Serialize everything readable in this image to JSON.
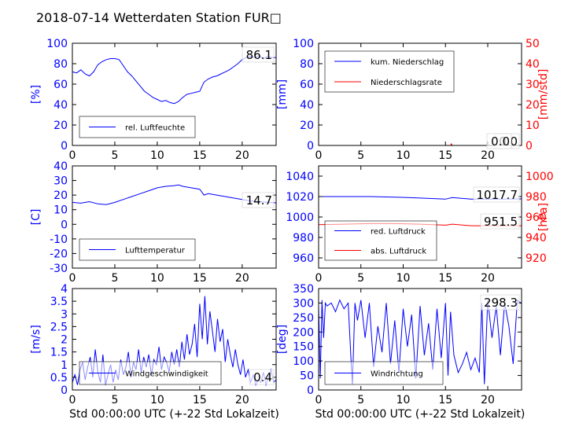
{
  "figure_title": "2018-07-14 Wetterdaten Station FUR□",
  "colors": {
    "blue": "#0000ff",
    "red": "#ff0000",
    "black": "#000000"
  },
  "chart_data": [
    {
      "type": "line",
      "xlim": [
        0,
        24
      ],
      "xticks": [
        0,
        5,
        10,
        15,
        20
      ],
      "ylabel": "[%]",
      "ylim": [
        0,
        100
      ],
      "yticks": [
        0,
        20,
        40,
        60,
        80,
        100
      ],
      "legend": [
        "rel. Luftfeuchte"
      ],
      "legend_loc": "lower-left",
      "annotation": "86.1",
      "series": [
        {
          "name": "rel. Luftfeuchte",
          "color": "#0000ff",
          "x": [
            0,
            0.5,
            1,
            1.5,
            2,
            2.5,
            3,
            3.5,
            4,
            4.5,
            5,
            5.5,
            6,
            6.5,
            7,
            7.5,
            8,
            8.5,
            9,
            9.5,
            10,
            10.5,
            11,
            11.5,
            12,
            12.5,
            13,
            13.5,
            14,
            14.5,
            15,
            15.5,
            16,
            16.5,
            17,
            17.5,
            18,
            18.5,
            19,
            19.5,
            20,
            20.5,
            21,
            21.5,
            22,
            22.5,
            23,
            23.5,
            24
          ],
          "y": [
            72,
            71,
            74,
            70,
            68,
            72,
            79,
            82,
            84,
            85,
            85,
            84,
            78,
            72,
            68,
            63,
            58,
            53,
            50,
            47,
            45,
            43,
            44,
            42,
            41,
            43,
            47,
            50,
            51,
            52,
            53,
            62,
            65,
            67,
            68,
            70,
            72,
            74,
            77,
            80,
            84,
            86,
            87,
            86,
            88,
            85,
            87,
            86,
            86
          ]
        }
      ]
    },
    {
      "type": "line",
      "xlim": [
        0,
        24
      ],
      "xticks": [
        0,
        5,
        10,
        15,
        20
      ],
      "ylabel": "[mm]",
      "ylim": [
        0,
        100
      ],
      "yticks": [
        0,
        20,
        40,
        60,
        80,
        100
      ],
      "ylabel_right": "[mm/std]",
      "ylim_right": [
        0,
        50
      ],
      "yticks_right": [
        0,
        10,
        20,
        30,
        40,
        50
      ],
      "legend": [
        "kum. Niederschlag",
        "Niederschlagsrate"
      ],
      "legend_loc": "upper-left",
      "annotations": [
        "0.0",
        "0.0"
      ],
      "series": [
        {
          "name": "kum. Niederschlag",
          "color": "#0000ff",
          "axis": "left",
          "x": [
            0,
            24
          ],
          "y": [
            0,
            0
          ]
        },
        {
          "name": "Niederschlagsrate",
          "color": "#ff0000",
          "axis": "right",
          "x": [
            0,
            15.6,
            15.7,
            15.8,
            24
          ],
          "y": [
            0,
            0,
            0.8,
            0,
            0
          ]
        }
      ]
    },
    {
      "type": "line",
      "xlim": [
        0,
        24
      ],
      "xticks": [
        0,
        5,
        10,
        15,
        20
      ],
      "ylabel": "[C]",
      "ylim": [
        -30,
        40
      ],
      "yticks": [
        -30,
        -20,
        -10,
        0,
        10,
        20,
        30,
        40
      ],
      "legend": [
        "Lufttemperatur"
      ],
      "legend_loc": "lower-left",
      "annotation": "14.7",
      "series": [
        {
          "name": "Lufttemperatur",
          "color": "#0000ff",
          "x": [
            0,
            1,
            2,
            3,
            4,
            5,
            6,
            7,
            8,
            9,
            10,
            11,
            12,
            12.5,
            13,
            14,
            15,
            15.5,
            16,
            17,
            18,
            19,
            20,
            21,
            22,
            23,
            24
          ],
          "y": [
            15,
            14.5,
            15.5,
            14,
            13.5,
            15,
            17,
            19,
            21,
            23,
            25,
            26,
            26.5,
            27,
            26,
            25,
            24,
            20,
            21,
            20,
            19,
            18,
            17,
            16,
            15.5,
            15,
            14.7
          ]
        }
      ]
    },
    {
      "type": "line",
      "xlim": [
        0,
        24
      ],
      "xticks": [
        0,
        5,
        10,
        15,
        20
      ],
      "ylabel": "",
      "ylim": [
        950,
        1050
      ],
      "yticks": [
        960,
        980,
        1000,
        1020,
        1040
      ],
      "ylabel_right": "[hPa]",
      "ylim_right": [
        910,
        1010
      ],
      "yticks_right": [
        920,
        940,
        960,
        980,
        1000
      ],
      "legend": [
        "red. Luftdruck",
        "abs. Luftdruck"
      ],
      "legend_loc": "lower-left",
      "annotations": [
        "1017.7",
        "951.5"
      ],
      "series": [
        {
          "name": "red. Luftdruck",
          "color": "#0000ff",
          "axis": "left",
          "x": [
            0,
            3,
            6,
            9,
            12,
            15,
            15.8,
            18,
            21,
            24
          ],
          "y": [
            1020,
            1020,
            1020,
            1019.5,
            1018.5,
            1017.5,
            1019,
            1017.5,
            1017.5,
            1017.7
          ]
        },
        {
          "name": "abs. Luftdruck",
          "color": "#ff0000",
          "axis": "right",
          "x": [
            0,
            3,
            6,
            9,
            12,
            15,
            15.8,
            18,
            21,
            24
          ],
          "y": [
            952.5,
            953,
            953.5,
            953.5,
            953,
            952,
            953,
            951.5,
            951.5,
            951.5
          ]
        }
      ]
    },
    {
      "type": "line",
      "xlim": [
        0,
        24
      ],
      "xticks": [
        0,
        5,
        10,
        15,
        20
      ],
      "ylabel": "[m/s]",
      "ylim": [
        0,
        4
      ],
      "yticks": [
        0,
        0.5,
        1,
        1.5,
        2,
        2.5,
        3,
        3.5,
        4
      ],
      "xlabel": "Std 00:00:00 UTC (+-22 Std Lokalzeit)",
      "legend": [
        "Windgeschwindigkeit"
      ],
      "legend_loc": "lower-left",
      "annotation": "0.4",
      "series": [
        {
          "name": "Windgeschwindigkeit",
          "color": "#0000ff",
          "x": [
            0,
            0.3,
            0.6,
            0.9,
            1.2,
            1.5,
            1.8,
            2.1,
            2.4,
            2.7,
            3,
            3.3,
            3.6,
            3.9,
            4.2,
            4.5,
            4.8,
            5.1,
            5.4,
            5.7,
            6,
            6.3,
            6.6,
            6.9,
            7.2,
            7.5,
            7.8,
            8.1,
            8.4,
            8.7,
            9,
            9.3,
            9.6,
            9.9,
            10.2,
            10.5,
            10.8,
            11.1,
            11.4,
            11.7,
            12,
            12.3,
            12.6,
            12.9,
            13.2,
            13.5,
            13.8,
            14.1,
            14.4,
            14.7,
            15,
            15.3,
            15.6,
            15.9,
            16.2,
            16.5,
            16.8,
            17.1,
            17.4,
            17.7,
            18,
            18.3,
            18.6,
            18.9,
            19.2,
            19.5,
            19.8,
            20.1,
            20.4,
            20.7,
            21,
            21.3,
            21.6,
            21.9,
            22.2,
            22.5,
            22.8,
            23.1,
            23.4,
            23.7,
            24
          ],
          "y": [
            0.3,
            0.6,
            0.2,
            0.8,
            1.1,
            0.4,
            0.9,
            1.3,
            0.5,
            1.6,
            0.7,
            0.3,
            1.4,
            0.2,
            0.6,
            1.0,
            0.3,
            0.8,
            0.4,
            1.2,
            0.6,
            0.9,
            1.5,
            0.5,
            1.1,
            0.8,
            1.6,
            0.7,
            1.3,
            0.9,
            1.4,
            0.6,
            1.2,
            1.0,
            1.7,
            0.8,
            1.3,
            1.1,
            0.7,
            1.5,
            1.0,
            1.6,
            0.9,
            1.9,
            1.2,
            2.2,
            1.4,
            1.8,
            2.6,
            1.3,
            3.4,
            2.0,
            3.7,
            1.8,
            3.1,
            2.3,
            1.5,
            2.8,
            1.9,
            2.4,
            1.1,
            2.0,
            1.4,
            0.9,
            1.6,
            1.0,
            0.6,
            1.2,
            0.5,
            0.8,
            0.3,
            0.6,
            0.2,
            0.4,
            0.3,
            0.7,
            0.2,
            0.5,
            0.8,
            0.3,
            0.4
          ]
        }
      ]
    },
    {
      "type": "line",
      "xlim": [
        0,
        24
      ],
      "xticks": [
        0,
        5,
        10,
        15,
        20
      ],
      "ylabel": "[deg]",
      "ylim": [
        0,
        350
      ],
      "yticks": [
        0,
        50,
        100,
        150,
        200,
        250,
        300,
        350
      ],
      "xlabel": "Std 00:00:00 UTC (+-22 Std Lokalzeit)",
      "legend": [
        "Windrichtung"
      ],
      "legend_loc": "lower-left",
      "annotation": "298.3",
      "series": [
        {
          "name": "Windrichtung",
          "color": "#0000ff",
          "x": [
            0,
            0.2,
            0.4,
            0.6,
            0.8,
            1,
            1.5,
            2,
            2.5,
            3,
            3.5,
            3.8,
            4,
            4.3,
            4.6,
            5,
            5.5,
            6,
            6.5,
            7,
            7.5,
            8,
            8.5,
            9,
            9.5,
            10,
            10.5,
            11,
            11.5,
            12,
            12.5,
            13,
            13.5,
            14,
            14.5,
            15,
            15.3,
            15.6,
            16,
            16.5,
            17,
            17.5,
            18,
            18.5,
            19,
            19.3,
            19.6,
            20,
            20.5,
            21,
            21.5,
            22,
            22.5,
            23,
            23.5,
            24
          ],
          "y": [
            290,
            40,
            310,
            180,
            300,
            290,
            300,
            270,
            310,
            280,
            300,
            120,
            20,
            300,
            240,
            310,
            180,
            300,
            80,
            220,
            130,
            300,
            90,
            240,
            60,
            280,
            150,
            260,
            40,
            290,
            120,
            230,
            70,
            280,
            110,
            300,
            50,
            270,
            120,
            60,
            90,
            130,
            70,
            110,
            60,
            300,
            20,
            310,
            180,
            290,
            120,
            300,
            220,
            90,
            310,
            298
          ]
        }
      ]
    }
  ]
}
